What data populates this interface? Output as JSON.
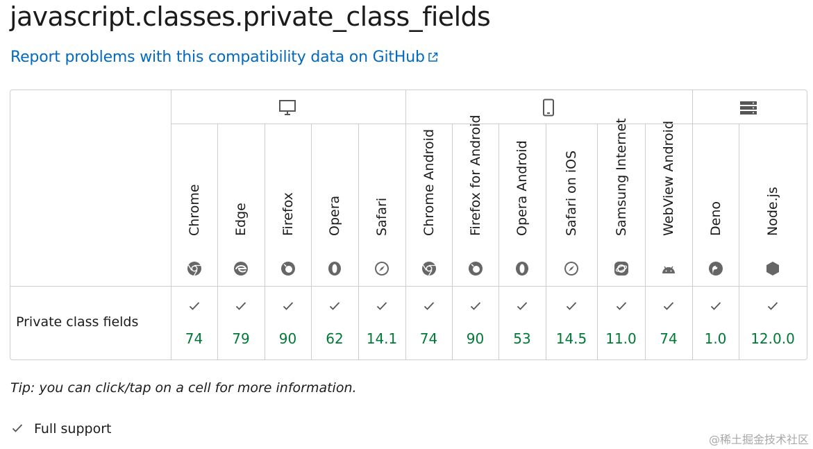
{
  "page": {
    "title": "javascript.classes.private_class_fields",
    "report_link": "Report problems with this compatibility data on GitHub",
    "tip": "Tip: you can click/tap on a cell for more information.",
    "legend_full_support": "Full support",
    "watermark": "@稀土掘金技术社区"
  },
  "platforms": [
    {
      "name": "desktop",
      "icon": "desktop-icon"
    },
    {
      "name": "mobile",
      "icon": "mobile-icon"
    },
    {
      "name": "server",
      "icon": "server-icon"
    }
  ],
  "browsers": [
    {
      "name": "Chrome",
      "icon": "chrome-icon"
    },
    {
      "name": "Edge",
      "icon": "edge-icon"
    },
    {
      "name": "Firefox",
      "icon": "firefox-icon"
    },
    {
      "name": "Opera",
      "icon": "opera-icon"
    },
    {
      "name": "Safari",
      "icon": "safari-icon"
    },
    {
      "name": "Chrome Android",
      "icon": "chrome-icon"
    },
    {
      "name": "Firefox for Android",
      "icon": "firefox-icon"
    },
    {
      "name": "Opera Android",
      "icon": "opera-icon"
    },
    {
      "name": "Safari on iOS",
      "icon": "safari-icon"
    },
    {
      "name": "Samsung Internet",
      "icon": "samsung-internet-icon"
    },
    {
      "name": "WebView Android",
      "icon": "android-icon"
    },
    {
      "name": "Deno",
      "icon": "deno-icon"
    },
    {
      "name": "Node.js",
      "icon": "nodejs-icon"
    }
  ],
  "feature": {
    "name": "Private class fields",
    "support": [
      {
        "version": "74",
        "status": "full"
      },
      {
        "version": "79",
        "status": "full"
      },
      {
        "version": "90",
        "status": "full"
      },
      {
        "version": "62",
        "status": "full"
      },
      {
        "version": "14.1",
        "status": "full"
      },
      {
        "version": "74",
        "status": "full"
      },
      {
        "version": "90",
        "status": "full"
      },
      {
        "version": "53",
        "status": "full"
      },
      {
        "version": "14.5",
        "status": "full"
      },
      {
        "version": "11.0",
        "status": "full"
      },
      {
        "version": "74",
        "status": "full"
      },
      {
        "version": "1.0",
        "status": "full"
      },
      {
        "version": "12.0.0",
        "status": "full"
      }
    ]
  },
  "colors": {
    "link": "#0069c2",
    "version_text": "#007936",
    "border": "#cdcdcd",
    "icon": "#696969"
  }
}
